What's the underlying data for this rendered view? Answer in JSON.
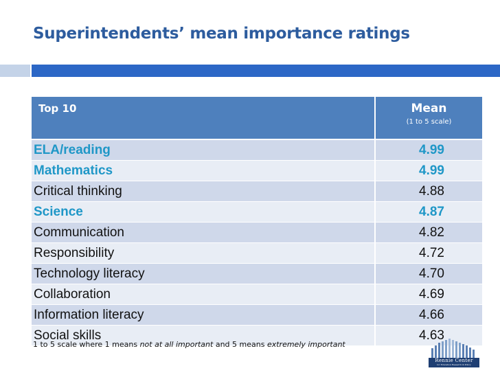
{
  "slide": {
    "title": "Superintendents’ mean importance ratings",
    "colors": {
      "title": "#2d5c9e",
      "accent_bar": "#2c67c6",
      "accent_bar_light": "#c4d3e8",
      "header_fill": "#4e80bd",
      "highlight_text": "#1f97c7"
    }
  },
  "table": {
    "header": {
      "category": "Top 10",
      "mean": "Mean",
      "mean_scale": "(1 to 5 scale)"
    },
    "rows": [
      {
        "label": "ELA/reading",
        "value": "4.99",
        "highlight": true
      },
      {
        "label": "Mathematics",
        "value": "4.99",
        "highlight": true
      },
      {
        "label": "Critical thinking",
        "value": "4.88",
        "highlight": false
      },
      {
        "label": "Science",
        "value": "4.87",
        "highlight": true
      },
      {
        "label": "Communication",
        "value": "4.82",
        "highlight": false
      },
      {
        "label": "Responsibility",
        "value": "4.72",
        "highlight": false
      },
      {
        "label": "Technology literacy",
        "value": "4.70",
        "highlight": false
      },
      {
        "label": "Collaboration",
        "value": "4.69",
        "highlight": false
      },
      {
        "label": "Information literacy",
        "value": "4.66",
        "highlight": false
      },
      {
        "label": "Social skills",
        "value": "4.63",
        "highlight": false
      }
    ]
  },
  "footnote": {
    "part1": "1 to 5 scale where 1 means ",
    "italic1": "not at all important",
    "part2": " and 5 means ",
    "italic2": "extremely important"
  },
  "logo": {
    "name": "Rennie Center",
    "tagline": "for Education Research & Policy"
  }
}
